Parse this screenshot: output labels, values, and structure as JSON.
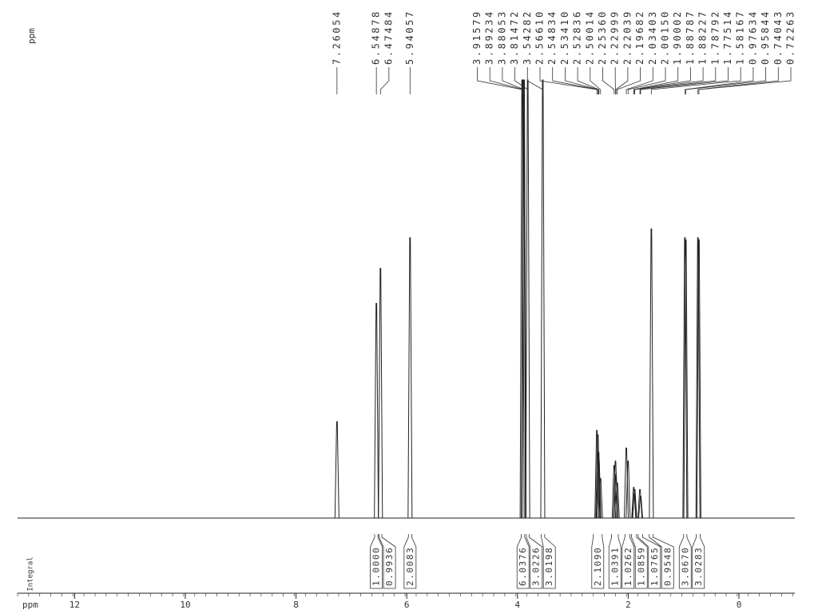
{
  "chart_data": {
    "type": "nmr",
    "x_label": "ppm",
    "peak_unit": "ppm",
    "integral_label": "Integral",
    "xlim": [
      13.03,
      -1.01
    ],
    "ylim": [
      0,
      100
    ],
    "xticks": [
      12,
      10,
      8,
      6,
      4,
      2,
      0
    ],
    "peaks": {
      "values": [
        7.26054,
        6.54878,
        6.47484,
        5.94057,
        3.91579,
        3.89234,
        3.88053,
        3.81472,
        3.54282,
        2.5661,
        2.54834,
        2.5341,
        2.52836,
        2.50014,
        2.2536,
        2.22999,
        2.22039,
        2.19682,
        2.03403,
        2.0015,
        1.90002,
        1.88787,
        1.88227,
        1.78792,
        1.77514,
        1.58167,
        0.97634,
        0.95844,
        0.74043,
        0.72263
      ],
      "value_labels": [
        "7.26054",
        "6.54878",
        "6.47484",
        "5.94057",
        "3.91579",
        "3.89234",
        "3.88053",
        "3.81472",
        "3.54282",
        "2.56610",
        "2.54834",
        "2.53410",
        "2.52836",
        "2.50014",
        "2.25360",
        "2.22999",
        "2.22039",
        "2.19682",
        "2.03403",
        "2.00150",
        "1.90002",
        "1.88787",
        "1.88227",
        "1.78792",
        "1.77514",
        "1.58167",
        "0.97634",
        "0.95844",
        "0.74043",
        "0.72263"
      ],
      "intensities": [
        22,
        49,
        57,
        64,
        100,
        100,
        100,
        100,
        100,
        20,
        19,
        15,
        13,
        9,
        12,
        13,
        10,
        8,
        16,
        13,
        7,
        5.5,
        6.5,
        6.5,
        5,
        66,
        64,
        63.5,
        64,
        63.5
      ]
    },
    "integrals": {
      "values": [
        1.0,
        0.9936,
        2.0083,
        6.0376,
        3.0226,
        3.0198,
        2.109,
        1.0391,
        1.0262,
        1.0859,
        1.0765,
        0.9548,
        3.067,
        3.0283
      ],
      "value_labels": [
        "1.0000",
        "0.9936",
        "2.0083",
        "6.0376",
        "3.0226",
        "3.0198",
        "2.1090",
        "1.0391",
        "1.0262",
        "1.0859",
        "1.0765",
        "0.9548",
        "3.0670",
        "3.0283"
      ],
      "regions": [
        [
          6.58,
          6.52
        ],
        [
          6.5,
          6.45
        ],
        [
          5.97,
          5.91
        ],
        [
          3.93,
          3.87
        ],
        [
          3.84,
          3.79
        ],
        [
          3.57,
          3.51
        ],
        [
          2.63,
          2.47
        ],
        [
          2.3,
          2.18
        ],
        [
          2.06,
          1.97
        ],
        [
          1.94,
          1.85
        ],
        [
          1.82,
          1.74
        ],
        [
          1.62,
          1.55
        ],
        [
          1.0,
          0.94
        ],
        [
          0.77,
          0.7
        ]
      ]
    }
  }
}
